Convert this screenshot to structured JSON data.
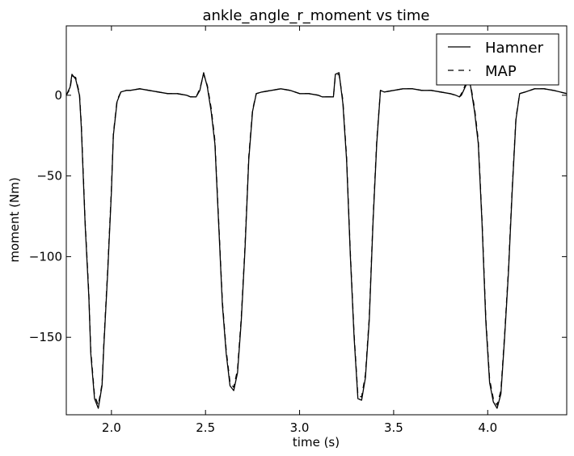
{
  "chart_data": {
    "type": "line",
    "title": "ankle_angle_r_moment vs time",
    "xlabel": "time (s)",
    "ylabel": "moment (Nm)",
    "xlim": [
      1.76,
      4.42
    ],
    "ylim": [
      -198,
      43
    ],
    "xticks": [
      2.0,
      2.5,
      3.0,
      3.5,
      4.0
    ],
    "xtick_labels": [
      "2.0",
      "2.5",
      "3.0",
      "3.5",
      "4.0"
    ],
    "yticks": [
      0,
      -50,
      -100,
      -150
    ],
    "ytick_labels": [
      "0",
      "−50",
      "−100",
      "−150"
    ],
    "grid": false,
    "legend": {
      "position": "top-right",
      "entries": [
        "Hamner",
        "MAP"
      ]
    },
    "series": [
      {
        "name": "Hamner",
        "style": "solid",
        "color": "#000000",
        "points": [
          [
            1.76,
            0
          ],
          [
            1.78,
            5
          ],
          [
            1.79,
            13
          ],
          [
            1.81,
            10
          ],
          [
            1.83,
            0
          ],
          [
            1.84,
            -20
          ],
          [
            1.86,
            -80
          ],
          [
            1.88,
            -125
          ],
          [
            1.89,
            -160
          ],
          [
            1.91,
            -188
          ],
          [
            1.93,
            -194
          ],
          [
            1.95,
            -180
          ],
          [
            1.96,
            -155
          ],
          [
            1.98,
            -110
          ],
          [
            2.0,
            -60
          ],
          [
            2.01,
            -25
          ],
          [
            2.03,
            -4
          ],
          [
            2.05,
            2
          ],
          [
            2.08,
            3
          ],
          [
            2.1,
            3
          ],
          [
            2.15,
            4
          ],
          [
            2.2,
            3
          ],
          [
            2.25,
            2
          ],
          [
            2.3,
            1
          ],
          [
            2.35,
            1
          ],
          [
            2.4,
            0
          ],
          [
            2.42,
            -1
          ],
          [
            2.45,
            -1
          ],
          [
            2.47,
            3
          ],
          [
            2.49,
            14
          ],
          [
            2.51,
            5
          ],
          [
            2.53,
            -10
          ],
          [
            2.55,
            -30
          ],
          [
            2.57,
            -80
          ],
          [
            2.59,
            -130
          ],
          [
            2.61,
            -160
          ],
          [
            2.63,
            -180
          ],
          [
            2.65,
            -183
          ],
          [
            2.67,
            -172
          ],
          [
            2.69,
            -140
          ],
          [
            2.71,
            -95
          ],
          [
            2.73,
            -40
          ],
          [
            2.75,
            -10
          ],
          [
            2.77,
            1
          ],
          [
            2.8,
            2
          ],
          [
            2.85,
            3
          ],
          [
            2.9,
            4
          ],
          [
            2.95,
            3
          ],
          [
            3.0,
            1
          ],
          [
            3.05,
            1
          ],
          [
            3.1,
            0
          ],
          [
            3.12,
            -1
          ],
          [
            3.16,
            -1
          ],
          [
            3.18,
            -1
          ],
          [
            3.19,
            13
          ],
          [
            3.21,
            14
          ],
          [
            3.23,
            -5
          ],
          [
            3.25,
            -40
          ],
          [
            3.27,
            -100
          ],
          [
            3.29,
            -150
          ],
          [
            3.31,
            -188
          ],
          [
            3.33,
            -189
          ],
          [
            3.35,
            -175
          ],
          [
            3.37,
            -140
          ],
          [
            3.39,
            -80
          ],
          [
            3.41,
            -30
          ],
          [
            3.43,
            3
          ],
          [
            3.45,
            2
          ],
          [
            3.5,
            3
          ],
          [
            3.55,
            4
          ],
          [
            3.6,
            4
          ],
          [
            3.65,
            3
          ],
          [
            3.7,
            3
          ],
          [
            3.75,
            2
          ],
          [
            3.8,
            1
          ],
          [
            3.83,
            0
          ],
          [
            3.85,
            -1
          ],
          [
            3.86,
            0
          ],
          [
            3.88,
            5
          ],
          [
            3.9,
            10
          ],
          [
            3.91,
            5
          ],
          [
            3.93,
            -10
          ],
          [
            3.95,
            -30
          ],
          [
            3.97,
            -80
          ],
          [
            3.99,
            -140
          ],
          [
            4.01,
            -178
          ],
          [
            4.03,
            -190
          ],
          [
            4.05,
            -194
          ],
          [
            4.07,
            -185
          ],
          [
            4.09,
            -150
          ],
          [
            4.11,
            -110
          ],
          [
            4.13,
            -60
          ],
          [
            4.15,
            -15
          ],
          [
            4.17,
            1
          ],
          [
            4.2,
            2
          ],
          [
            4.25,
            4
          ],
          [
            4.3,
            4
          ],
          [
            4.35,
            3
          ],
          [
            4.42,
            1
          ]
        ]
      },
      {
        "name": "MAP",
        "style": "dashed",
        "color": "#000000",
        "points": [
          [
            1.76,
            0
          ],
          [
            1.78,
            4
          ],
          [
            1.79,
            12
          ],
          [
            1.81,
            11
          ],
          [
            1.83,
            1
          ],
          [
            1.84,
            -18
          ],
          [
            1.86,
            -78
          ],
          [
            1.88,
            -123
          ],
          [
            1.89,
            -158
          ],
          [
            1.91,
            -186
          ],
          [
            1.93,
            -192
          ],
          [
            1.95,
            -179
          ],
          [
            1.96,
            -153
          ],
          [
            1.98,
            -108
          ],
          [
            2.0,
            -58
          ],
          [
            2.01,
            -24
          ],
          [
            2.03,
            -3
          ],
          [
            2.05,
            2
          ],
          [
            2.08,
            3
          ],
          [
            2.1,
            3
          ],
          [
            2.15,
            4
          ],
          [
            2.2,
            3
          ],
          [
            2.25,
            2
          ],
          [
            2.3,
            1
          ],
          [
            2.35,
            1
          ],
          [
            2.4,
            0
          ],
          [
            2.42,
            -1
          ],
          [
            2.45,
            -1
          ],
          [
            2.47,
            4
          ],
          [
            2.49,
            13
          ],
          [
            2.51,
            6
          ],
          [
            2.53,
            -8
          ],
          [
            2.55,
            -28
          ],
          [
            2.57,
            -78
          ],
          [
            2.59,
            -128
          ],
          [
            2.61,
            -158
          ],
          [
            2.63,
            -178
          ],
          [
            2.65,
            -181
          ],
          [
            2.67,
            -170
          ],
          [
            2.69,
            -138
          ],
          [
            2.71,
            -93
          ],
          [
            2.73,
            -38
          ],
          [
            2.75,
            -9
          ],
          [
            2.77,
            1
          ],
          [
            2.8,
            2
          ],
          [
            2.85,
            3
          ],
          [
            2.9,
            4
          ],
          [
            2.95,
            3
          ],
          [
            3.0,
            1
          ],
          [
            3.05,
            1
          ],
          [
            3.1,
            0
          ],
          [
            3.12,
            -1
          ],
          [
            3.16,
            -1
          ],
          [
            3.18,
            -1
          ],
          [
            3.19,
            12
          ],
          [
            3.21,
            13
          ],
          [
            3.23,
            -3
          ],
          [
            3.25,
            -38
          ],
          [
            3.27,
            -98
          ],
          [
            3.29,
            -148
          ],
          [
            3.31,
            -186
          ],
          [
            3.33,
            -187
          ],
          [
            3.35,
            -173
          ],
          [
            3.37,
            -138
          ],
          [
            3.39,
            -78
          ],
          [
            3.41,
            -28
          ],
          [
            3.43,
            3
          ],
          [
            3.45,
            2
          ],
          [
            3.5,
            3
          ],
          [
            3.55,
            4
          ],
          [
            3.6,
            4
          ],
          [
            3.65,
            3
          ],
          [
            3.7,
            3
          ],
          [
            3.75,
            2
          ],
          [
            3.8,
            1
          ],
          [
            3.83,
            0
          ],
          [
            3.85,
            -1
          ],
          [
            3.86,
            1
          ],
          [
            3.88,
            6
          ],
          [
            3.9,
            10
          ],
          [
            3.91,
            6
          ],
          [
            3.93,
            -8
          ],
          [
            3.95,
            -28
          ],
          [
            3.97,
            -78
          ],
          [
            3.99,
            -138
          ],
          [
            4.01,
            -176
          ],
          [
            4.03,
            -188
          ],
          [
            4.05,
            -192
          ],
          [
            4.07,
            -183
          ],
          [
            4.09,
            -148
          ],
          [
            4.11,
            -108
          ],
          [
            4.13,
            -58
          ],
          [
            4.15,
            -14
          ],
          [
            4.17,
            1
          ],
          [
            4.2,
            2
          ],
          [
            4.25,
            4
          ],
          [
            4.3,
            4
          ],
          [
            4.35,
            3
          ],
          [
            4.42,
            1
          ]
        ]
      }
    ]
  }
}
